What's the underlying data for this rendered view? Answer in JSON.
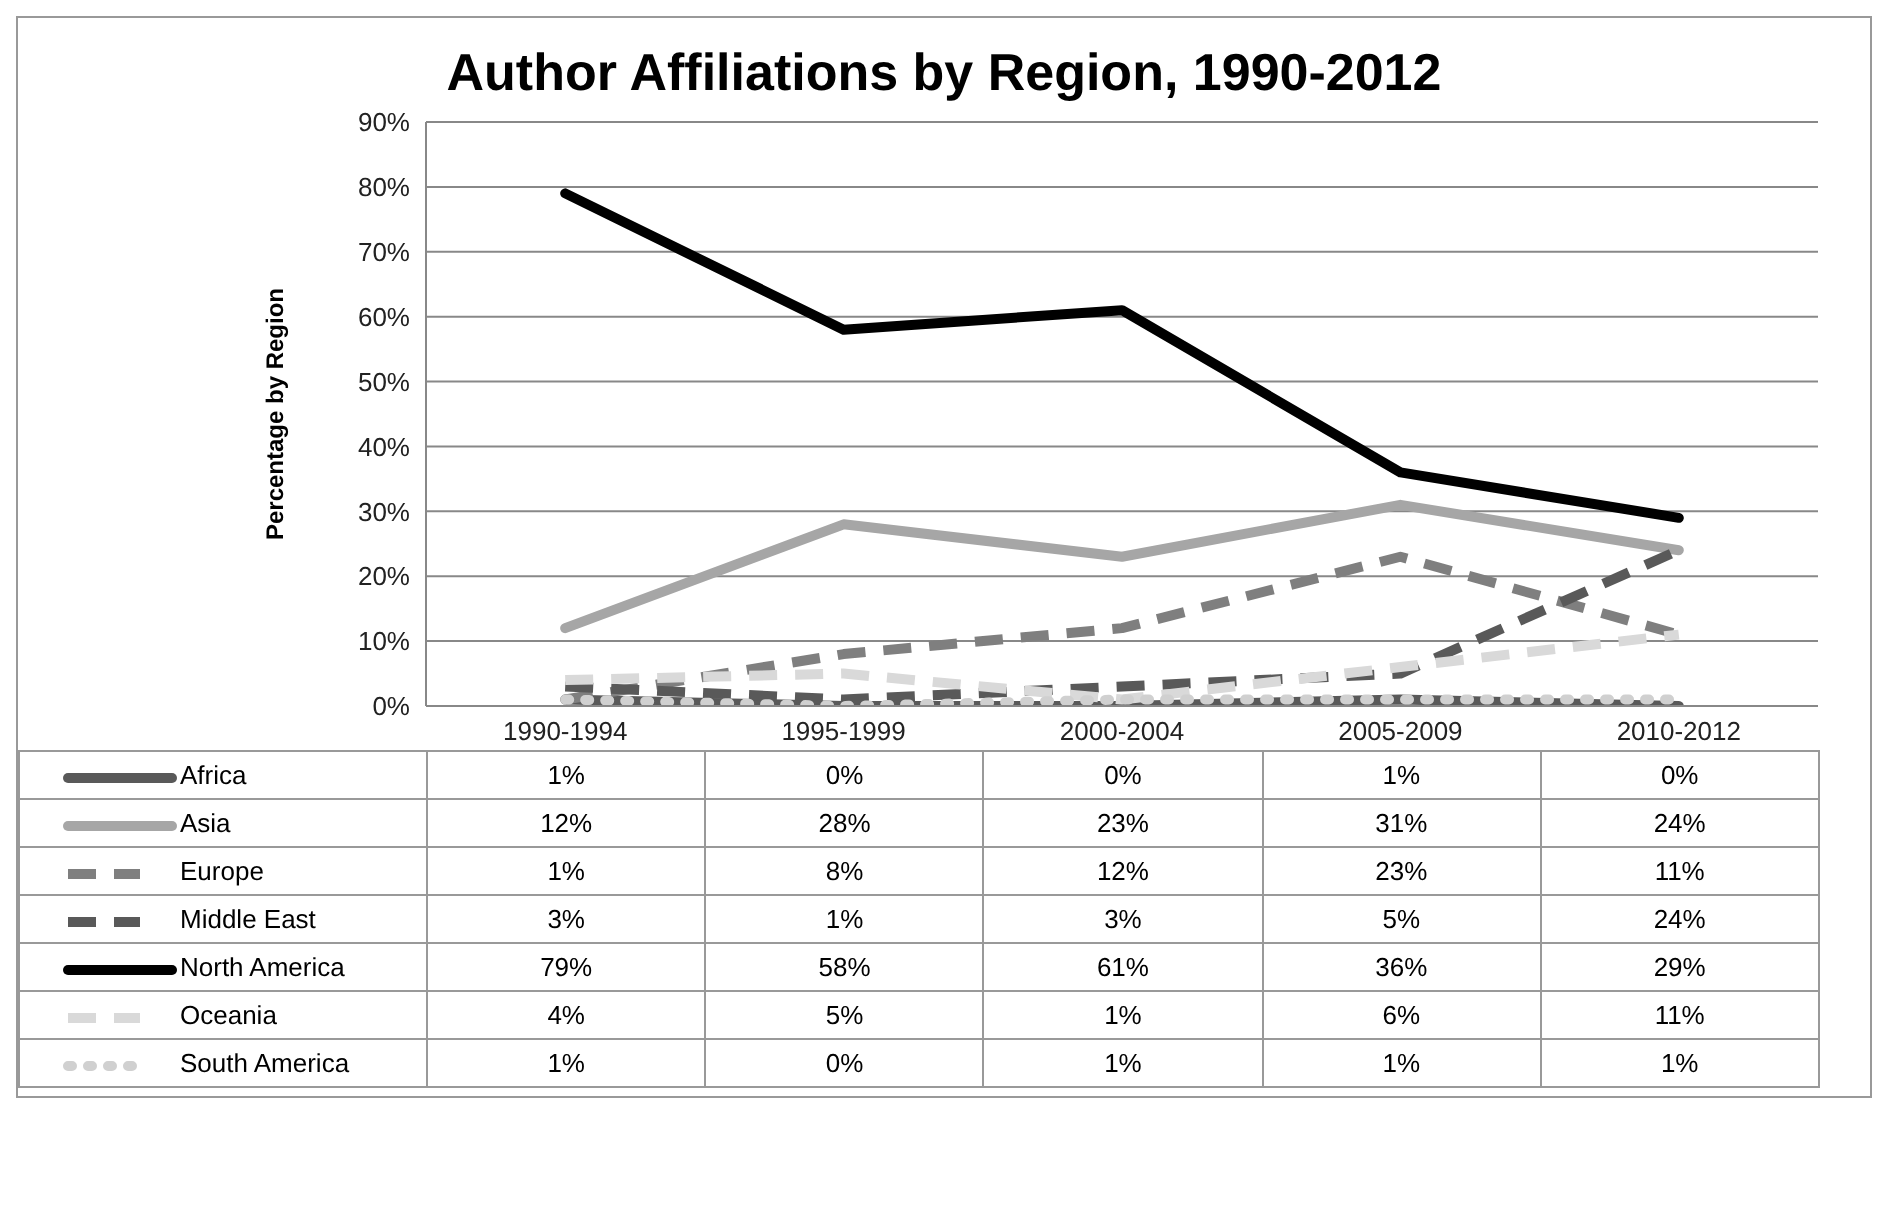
{
  "chart_data": {
    "type": "line",
    "title": "Author Affiliations by Region, 1990-2012",
    "ylabel": "Percentage by Region",
    "categories": [
      "1990-1994",
      "1995-1999",
      "2000-2004",
      "2005-2009",
      "2010-2012"
    ],
    "ylim": [
      0,
      90
    ],
    "yticks": [
      {
        "value": 0,
        "label": "0%"
      },
      {
        "value": 10,
        "label": "10%"
      },
      {
        "value": 20,
        "label": "20%"
      },
      {
        "value": 30,
        "label": "30%"
      },
      {
        "value": 40,
        "label": "40%"
      },
      {
        "value": 50,
        "label": "50%"
      },
      {
        "value": 60,
        "label": "60%"
      },
      {
        "value": 70,
        "label": "70%"
      },
      {
        "value": 80,
        "label": "80%"
      },
      {
        "value": 90,
        "label": "90%"
      }
    ],
    "grid": "y",
    "legend": "bottom",
    "series": [
      {
        "name": "Africa",
        "color": "#595959",
        "line_style": "solid",
        "values": [
          1,
          0,
          0,
          1,
          0
        ],
        "value_labels": [
          "1%",
          "0%",
          "0%",
          "1%",
          "0%"
        ]
      },
      {
        "name": "Asia",
        "color": "#a6a6a6",
        "line_style": "solid",
        "values": [
          12,
          28,
          23,
          31,
          24
        ],
        "value_labels": [
          "12%",
          "28%",
          "23%",
          "31%",
          "24%"
        ]
      },
      {
        "name": "Europe",
        "color": "#7f7f7f",
        "line_style": "dashed",
        "values": [
          1,
          8,
          12,
          23,
          11
        ],
        "value_labels": [
          "1%",
          "8%",
          "12%",
          "23%",
          "11%"
        ]
      },
      {
        "name": "Middle East",
        "color": "#595959",
        "line_style": "dashed",
        "values": [
          3,
          1,
          3,
          5,
          24
        ],
        "value_labels": [
          "3%",
          "1%",
          "3%",
          "5%",
          "24%"
        ]
      },
      {
        "name": "North America",
        "color": "#000000",
        "line_style": "solid",
        "values": [
          79,
          58,
          61,
          36,
          29
        ],
        "value_labels": [
          "79%",
          "58%",
          "61%",
          "36%",
          "29%"
        ]
      },
      {
        "name": "Oceania",
        "color": "#d9d9d9",
        "line_style": "dashed",
        "values": [
          4,
          5,
          1,
          6,
          11
        ],
        "value_labels": [
          "4%",
          "5%",
          "1%",
          "6%",
          "11%"
        ]
      },
      {
        "name": "South America",
        "color": "#d0d0d0",
        "line_style": "dotted",
        "values": [
          1,
          0,
          1,
          1,
          1
        ],
        "value_labels": [
          "1%",
          "0%",
          "1%",
          "1%",
          "1%"
        ]
      }
    ]
  }
}
